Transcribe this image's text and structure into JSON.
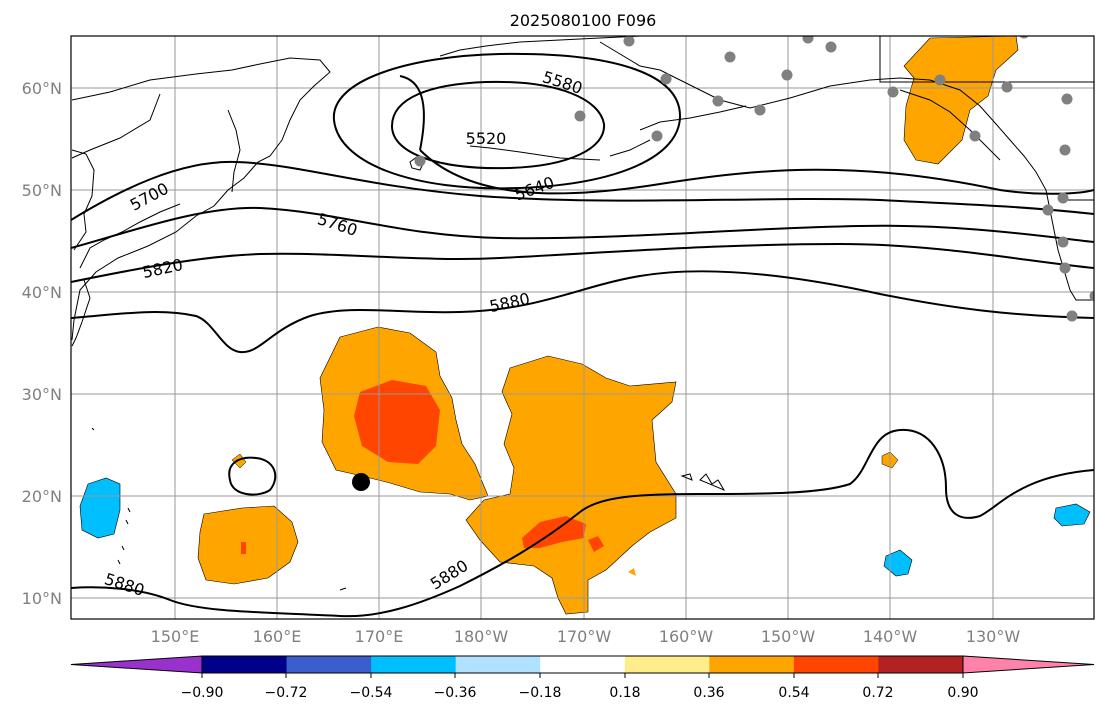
{
  "title": "2025080100 F096",
  "lat_labels": [
    "10°N",
    "20°N",
    "30°N",
    "40°N",
    "50°N",
    "60°N"
  ],
  "lon_labels": [
    "150°E",
    "160°E",
    "170°E",
    "180°W",
    "170°W",
    "160°W",
    "150°W",
    "140°W",
    "130°W"
  ],
  "contour_labels": [
    "5520",
    "5580",
    "5640",
    "5700",
    "5760",
    "5820",
    "5880",
    "5880",
    "5880"
  ],
  "colorbar": {
    "tick_labels": [
      "−0.90",
      "−0.72",
      "−0.54",
      "−0.36",
      "−0.18",
      "0.18",
      "0.36",
      "0.54",
      "0.72",
      "0.90"
    ],
    "colors": [
      "#9932cc",
      "#00008b",
      "#3a5fcd",
      "#00bfff",
      "#b0e2ff",
      "#ffffff",
      "#ffec8b",
      "#ffa500",
      "#ff4500",
      "#b22222",
      "#ff82ab"
    ]
  }
}
